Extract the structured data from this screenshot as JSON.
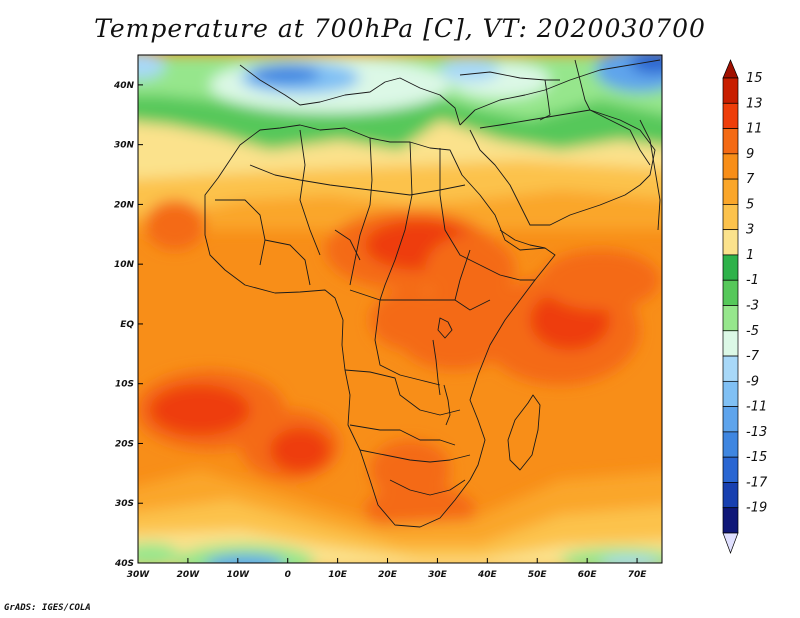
{
  "title": "Temperature at 700hPa [C], VT: 2020030700",
  "credit": "GrADS: IGES/COLA",
  "map": {
    "lon_range": [
      -30,
      75
    ],
    "lat_range": [
      -40,
      45
    ],
    "x_ticks": [
      {
        "value": -30,
        "label": "30W"
      },
      {
        "value": -20,
        "label": "20W"
      },
      {
        "value": -10,
        "label": "10W"
      },
      {
        "value": 0,
        "label": "0"
      },
      {
        "value": 10,
        "label": "10E"
      },
      {
        "value": 20,
        "label": "20E"
      },
      {
        "value": 30,
        "label": "30E"
      },
      {
        "value": 40,
        "label": "40E"
      },
      {
        "value": 50,
        "label": "50E"
      },
      {
        "value": 60,
        "label": "60E"
      },
      {
        "value": 70,
        "label": "70E"
      }
    ],
    "y_ticks": [
      {
        "value": 40,
        "label": "40N"
      },
      {
        "value": 30,
        "label": "30N"
      },
      {
        "value": 20,
        "label": "20N"
      },
      {
        "value": 10,
        "label": "10N"
      },
      {
        "value": 0,
        "label": "EQ"
      },
      {
        "value": -10,
        "label": "10S"
      },
      {
        "value": -20,
        "label": "20S"
      },
      {
        "value": -30,
        "label": "30S"
      },
      {
        "value": -40,
        "label": "40S"
      }
    ]
  },
  "colorbar": {
    "levels": [
      {
        "label": "15",
        "color": "#c81e00"
      },
      {
        "label": "13",
        "color": "#ee3e0a"
      },
      {
        "label": "11",
        "color": "#f46a14"
      },
      {
        "label": "9",
        "color": "#f88e18"
      },
      {
        "label": "7",
        "color": "#faa62a"
      },
      {
        "label": "5",
        "color": "#fcc24c"
      },
      {
        "label": "3",
        "color": "#fbe28c"
      },
      {
        "label": "1",
        "color": "#2eb24a"
      },
      {
        "label": "-1",
        "color": "#56c85a"
      },
      {
        "label": "-3",
        "color": "#96e68c"
      },
      {
        "label": "-5",
        "color": "#dcf8e6"
      },
      {
        "label": "-7",
        "color": "#a8d8f8"
      },
      {
        "label": "-9",
        "color": "#80c0f4"
      },
      {
        "label": "-11",
        "color": "#5ea4ec"
      },
      {
        "label": "-13",
        "color": "#3f86e0"
      },
      {
        "label": "-15",
        "color": "#2a66d2"
      },
      {
        "label": "-17",
        "color": "#1840b0"
      },
      {
        "label": "-19",
        "color": "#101878"
      }
    ],
    "top_arrow_color": "#a01000",
    "bottom_arrow_color": "#e0e0ff"
  }
}
